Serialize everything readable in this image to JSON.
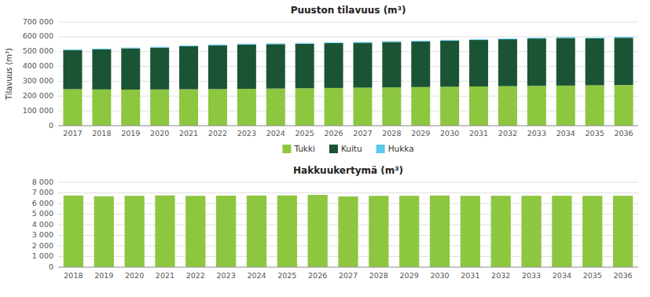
{
  "chart_data": [
    {
      "type": "bar",
      "stacked": true,
      "title": "Puuston tilavuus (m³)",
      "y_label": "Tilavuus (m³)",
      "categories": [
        "2017",
        "2018",
        "2019",
        "2020",
        "2021",
        "2022",
        "2023",
        "2024",
        "2025",
        "2026",
        "2027",
        "2028",
        "2029",
        "2030",
        "2031",
        "2032",
        "2033",
        "2034",
        "2035",
        "2036"
      ],
      "series": [
        {
          "name": "Tukki",
          "color": "#8dc63f",
          "values": [
            247000,
            245000,
            244000,
            245000,
            246000,
            247000,
            249000,
            251000,
            253000,
            255000,
            257000,
            259000,
            261000,
            263000,
            265000,
            267000,
            269000,
            271000,
            273000,
            275000
          ]
        },
        {
          "name": "Kuitu",
          "color": "#1a5435",
          "values": [
            263000,
            270000,
            278000,
            282000,
            290000,
            296000,
            299000,
            299000,
            300000,
            302000,
            303000,
            306000,
            308000,
            311000,
            314000,
            316000,
            319000,
            321000,
            316000,
            318000
          ]
        },
        {
          "name": "Hukka",
          "color": "#5bc8f0",
          "values": [
            5000,
            5000,
            5000,
            5000,
            5000,
            5000,
            5000,
            5000,
            5000,
            5000,
            5000,
            5000,
            5000,
            5000,
            5000,
            5500,
            5500,
            5500,
            5500,
            6000
          ]
        }
      ],
      "ylim": [
        0,
        700000
      ],
      "yticks": [
        0,
        {
          "value": 100000,
          "label": "100 000"
        },
        {
          "value": 200000,
          "label": "200 000"
        },
        {
          "value": 300000,
          "label": "300 000"
        },
        {
          "value": 400000,
          "label": "400 000"
        },
        {
          "value": 500000,
          "label": "500 000"
        },
        {
          "value": 600000,
          "label": "600 000"
        },
        {
          "value": 700000,
          "label": "700 000"
        }
      ],
      "grid": true,
      "legend": "bottom"
    },
    {
      "type": "bar",
      "title": "Hakkuukertymä (m³)",
      "categories": [
        "2018",
        "2019",
        "2020",
        "2021",
        "2022",
        "2023",
        "2024",
        "2025",
        "2026",
        "2027",
        "2028",
        "2029",
        "2030",
        "2031",
        "2032",
        "2033",
        "2034",
        "2035",
        "2036"
      ],
      "values": [
        6750,
        6680,
        6720,
        6760,
        6720,
        6740,
        6750,
        6760,
        6810,
        6660,
        6720,
        6730,
        6750,
        6720,
        6730,
        6730,
        6730,
        6720,
        6730
      ],
      "color": "#8dc63f",
      "ylim": [
        0,
        8000
      ],
      "yticks": [
        0,
        {
          "value": 1000,
          "label": "1 000"
        },
        {
          "value": 2000,
          "label": "2 000"
        },
        {
          "value": 3000,
          "label": "3 000"
        },
        {
          "value": 4000,
          "label": "4 000"
        },
        {
          "value": 5000,
          "label": "5 000"
        },
        {
          "value": 6000,
          "label": "6 000"
        },
        {
          "value": 7000,
          "label": "7 000"
        },
        {
          "value": 8000,
          "label": "8 000"
        }
      ],
      "grid": true
    }
  ]
}
